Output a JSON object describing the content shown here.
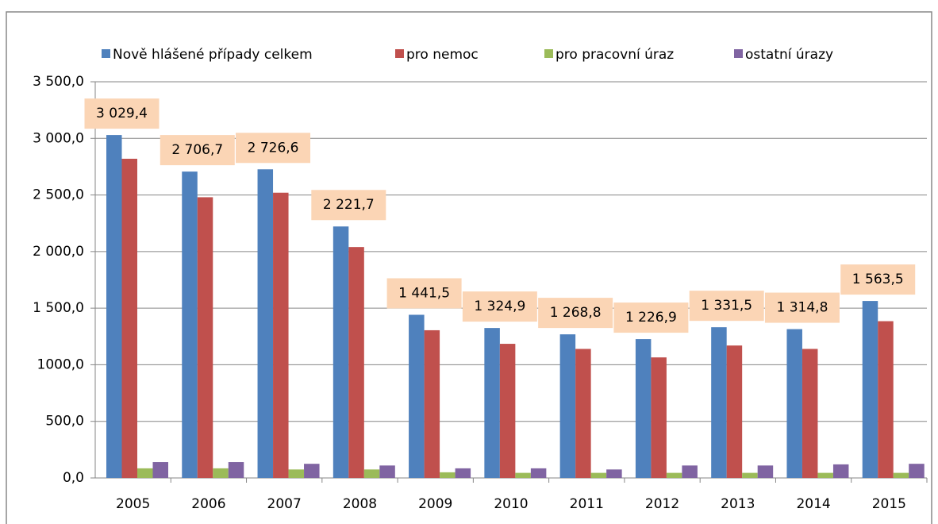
{
  "chart_data": {
    "type": "bar",
    "categories": [
      "2005",
      "2006",
      "2007",
      "2008",
      "2009",
      "2010",
      "2011",
      "2012",
      "2013",
      "2014",
      "2015"
    ],
    "series": [
      {
        "name": "Nově hlášené případy celkem",
        "color": "#4f81bd",
        "values": [
          3029.4,
          2706.7,
          2726.6,
          2221.7,
          1441.5,
          1324.9,
          1268.8,
          1226.9,
          1331.5,
          1314.8,
          1563.5
        ],
        "value_labels": [
          "3 029,4",
          "2 706,7",
          "2 726,6",
          "2 221,7",
          "1 441,5",
          "1 324,9",
          "1 268,8",
          "1 226,9",
          "1 331,5",
          "1 314,8",
          "1 563,5"
        ]
      },
      {
        "name": "pro nemoc",
        "color": "#c0504d",
        "values": [
          2820,
          2480,
          2520,
          2040,
          1305,
          1185,
          1140,
          1065,
          1170,
          1140,
          1385
        ]
      },
      {
        "name": "pro pracovní úraz",
        "color": "#9bbb59",
        "values": [
          85,
          85,
          75,
          75,
          50,
          45,
          45,
          45,
          45,
          45,
          45
        ]
      },
      {
        "name": "ostatní úrazy",
        "color": "#8064a2",
        "values": [
          140,
          140,
          125,
          110,
          85,
          85,
          75,
          110,
          110,
          120,
          125
        ]
      }
    ],
    "ylim": [
      0,
      3500
    ],
    "yticks": [
      {
        "value": 0,
        "label": "0,0"
      },
      {
        "value": 500,
        "label": "500,0"
      },
      {
        "value": 1000,
        "label": "1000,0"
      },
      {
        "value": 1500,
        "label": "1 500,0"
      },
      {
        "value": 2000,
        "label": "2 000,0"
      },
      {
        "value": 2500,
        "label": "2 500,0"
      },
      {
        "value": 3000,
        "label": "3 000,0"
      },
      {
        "value": 3500,
        "label": "3 500,0"
      }
    ],
    "grid": true,
    "legend": "top"
  }
}
